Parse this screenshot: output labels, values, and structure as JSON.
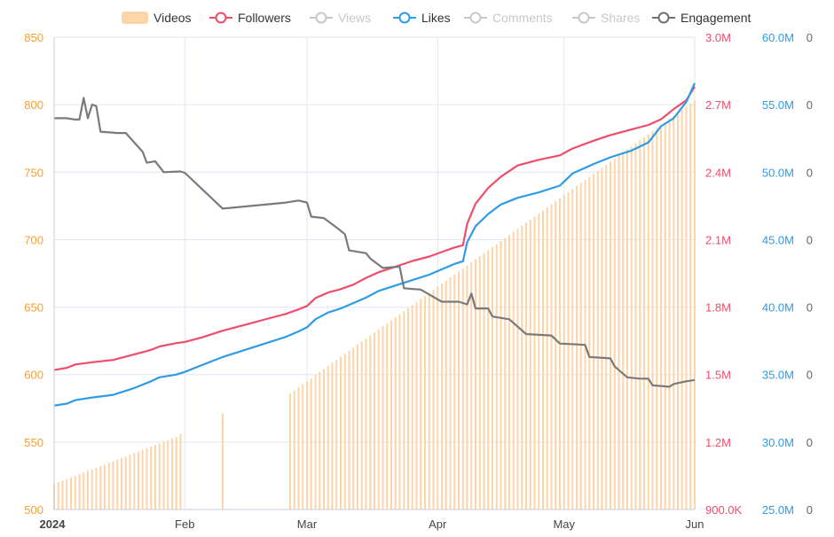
{
  "chart_data": {
    "type": "line",
    "legend_position": "top",
    "grid": true,
    "legend": [
      {
        "name": "Videos",
        "color": "#fcd5a8",
        "marker": "rect",
        "active": true
      },
      {
        "name": "Followers",
        "color": "#ee4d6c",
        "marker": "circle",
        "active": true
      },
      {
        "name": "Views",
        "color": "#c8c8c8",
        "marker": "circle",
        "active": false
      },
      {
        "name": "Likes",
        "color": "#2f9be4",
        "marker": "circle",
        "active": true
      },
      {
        "name": "Comments",
        "color": "#c8c8c8",
        "marker": "circle",
        "active": false
      },
      {
        "name": "Shares",
        "color": "#c8c8c8",
        "marker": "circle",
        "active": false
      },
      {
        "name": "Engagement",
        "color": "#707070",
        "marker": "circle",
        "active": true
      }
    ],
    "x_axis": {
      "type": "date",
      "range": [
        "2024-01-01",
        "2024-06-01"
      ],
      "ticks": [
        {
          "date": "2024-01-01",
          "label": "2024",
          "bold": true
        },
        {
          "date": "2024-02-01",
          "label": "Feb",
          "bold": false
        },
        {
          "date": "2024-03-01",
          "label": "Mar",
          "bold": false
        },
        {
          "date": "2024-04-01",
          "label": "Apr",
          "bold": false
        },
        {
          "date": "2024-05-01",
          "label": "May",
          "bold": false
        },
        {
          "date": "2024-06-01",
          "label": "Jun",
          "bold": false
        }
      ]
    },
    "y_axes": [
      {
        "id": "videos",
        "color": "#f5a030",
        "range": [
          500,
          850
        ],
        "ticks": [
          {
            "v": 500,
            "label": "500"
          },
          {
            "v": 550,
            "label": "550"
          },
          {
            "v": 600,
            "label": "600"
          },
          {
            "v": 650,
            "label": "650"
          },
          {
            "v": 700,
            "label": "700"
          },
          {
            "v": 750,
            "label": "750"
          },
          {
            "v": 800,
            "label": "800"
          },
          {
            "v": 850,
            "label": "850"
          }
        ]
      },
      {
        "id": "followers",
        "color": "#ee4d6c",
        "range": [
          900000,
          3000000
        ],
        "ticks": [
          {
            "v": 900000,
            "label": "900.0K"
          },
          {
            "v": 1200000,
            "label": "1.2M"
          },
          {
            "v": 1500000,
            "label": "1.5M"
          },
          {
            "v": 1800000,
            "label": "1.8M"
          },
          {
            "v": 2100000,
            "label": "2.1M"
          },
          {
            "v": 2400000,
            "label": "2.4M"
          },
          {
            "v": 2700000,
            "label": "2.7M"
          },
          {
            "v": 3000000,
            "label": "3.0M"
          }
        ]
      },
      {
        "id": "likes",
        "color": "#2f9be4",
        "range": [
          25000000,
          60000000
        ],
        "ticks": [
          {
            "v": 25000000,
            "label": "25.0M"
          },
          {
            "v": 30000000,
            "label": "30.0M"
          },
          {
            "v": 35000000,
            "label": "35.0M"
          },
          {
            "v": 40000000,
            "label": "40.0M"
          },
          {
            "v": 45000000,
            "label": "45.0M"
          },
          {
            "v": 50000000,
            "label": "50.0M"
          },
          {
            "v": 55000000,
            "label": "55.0M"
          },
          {
            "v": 60000000,
            "label": "60.0M"
          }
        ]
      },
      {
        "id": "engagement",
        "color": "#666666",
        "range": [
          0,
          7
        ],
        "ticks": [
          {
            "v": 0,
            "label": "0"
          },
          {
            "v": 1,
            "label": "0"
          },
          {
            "v": 2,
            "label": "0"
          },
          {
            "v": 3,
            "label": "0"
          },
          {
            "v": 4,
            "label": "0"
          },
          {
            "v": 5,
            "label": "0"
          },
          {
            "v": 6,
            "label": "0"
          },
          {
            "v": 7,
            "label": "0"
          }
        ]
      }
    ],
    "videos_segments": [
      {
        "start": "2024-01-01",
        "end": "2024-01-31",
        "from": 519,
        "to": 555
      },
      {
        "start": "2024-01-31",
        "end": "2024-01-31",
        "from": 556,
        "to": 556
      },
      {
        "start": "2024-02-10",
        "end": "2024-02-10",
        "from": 571,
        "to": 571
      },
      {
        "start": "2024-02-26",
        "end": "2024-06-01",
        "from": 586,
        "to": 803
      }
    ],
    "series": [
      {
        "name": "Followers",
        "axis": "followers",
        "color": "#ee4d6c",
        "points": [
          [
            "2024-01-01",
            1520000
          ],
          [
            "2024-01-04",
            1530000
          ],
          [
            "2024-01-06",
            1545000
          ],
          [
            "2024-01-10",
            1555000
          ],
          [
            "2024-01-15",
            1565000
          ],
          [
            "2024-01-20",
            1590000
          ],
          [
            "2024-01-24",
            1610000
          ],
          [
            "2024-01-26",
            1625000
          ],
          [
            "2024-01-30",
            1640000
          ],
          [
            "2024-02-01",
            1645000
          ],
          [
            "2024-02-05",
            1665000
          ],
          [
            "2024-02-10",
            1695000
          ],
          [
            "2024-02-15",
            1720000
          ],
          [
            "2024-02-20",
            1745000
          ],
          [
            "2024-02-25",
            1770000
          ],
          [
            "2024-02-28",
            1790000
          ],
          [
            "2024-03-01",
            1805000
          ],
          [
            "2024-03-03",
            1840000
          ],
          [
            "2024-03-06",
            1865000
          ],
          [
            "2024-03-09",
            1880000
          ],
          [
            "2024-03-12",
            1900000
          ],
          [
            "2024-03-15",
            1930000
          ],
          [
            "2024-03-18",
            1955000
          ],
          [
            "2024-03-22",
            1980000
          ],
          [
            "2024-03-26",
            2005000
          ],
          [
            "2024-03-30",
            2025000
          ],
          [
            "2024-04-02",
            2045000
          ],
          [
            "2024-04-05",
            2065000
          ],
          [
            "2024-04-07",
            2075000
          ],
          [
            "2024-04-08",
            2170000
          ],
          [
            "2024-04-10",
            2260000
          ],
          [
            "2024-04-13",
            2330000
          ],
          [
            "2024-04-16",
            2380000
          ],
          [
            "2024-04-20",
            2430000
          ],
          [
            "2024-04-25",
            2455000
          ],
          [
            "2024-04-30",
            2475000
          ],
          [
            "2024-05-03",
            2505000
          ],
          [
            "2024-05-08",
            2540000
          ],
          [
            "2024-05-12",
            2565000
          ],
          [
            "2024-05-17",
            2590000
          ],
          [
            "2024-05-21",
            2610000
          ],
          [
            "2024-05-24",
            2635000
          ],
          [
            "2024-05-27",
            2680000
          ],
          [
            "2024-05-30",
            2720000
          ],
          [
            "2024-06-01",
            2780000
          ]
        ]
      },
      {
        "name": "Likes",
        "axis": "likes",
        "color": "#2f9be4",
        "points": [
          [
            "2024-01-01",
            32700000
          ],
          [
            "2024-01-04",
            32850000
          ],
          [
            "2024-01-06",
            33100000
          ],
          [
            "2024-01-10",
            33300000
          ],
          [
            "2024-01-15",
            33500000
          ],
          [
            "2024-01-20",
            34000000
          ],
          [
            "2024-01-24",
            34500000
          ],
          [
            "2024-01-26",
            34800000
          ],
          [
            "2024-01-30",
            35000000
          ],
          [
            "2024-02-01",
            35200000
          ],
          [
            "2024-02-05",
            35700000
          ],
          [
            "2024-02-10",
            36300000
          ],
          [
            "2024-02-15",
            36800000
          ],
          [
            "2024-02-20",
            37300000
          ],
          [
            "2024-02-25",
            37800000
          ],
          [
            "2024-02-28",
            38200000
          ],
          [
            "2024-03-01",
            38500000
          ],
          [
            "2024-03-03",
            39100000
          ],
          [
            "2024-03-06",
            39600000
          ],
          [
            "2024-03-09",
            39900000
          ],
          [
            "2024-03-12",
            40300000
          ],
          [
            "2024-03-15",
            40700000
          ],
          [
            "2024-03-18",
            41200000
          ],
          [
            "2024-03-22",
            41600000
          ],
          [
            "2024-03-26",
            42000000
          ],
          [
            "2024-03-30",
            42400000
          ],
          [
            "2024-04-02",
            42800000
          ],
          [
            "2024-04-05",
            43200000
          ],
          [
            "2024-04-07",
            43400000
          ],
          [
            "2024-04-08",
            44800000
          ],
          [
            "2024-04-10",
            46000000
          ],
          [
            "2024-04-13",
            46900000
          ],
          [
            "2024-04-16",
            47600000
          ],
          [
            "2024-04-20",
            48100000
          ],
          [
            "2024-04-25",
            48500000
          ],
          [
            "2024-04-30",
            49000000
          ],
          [
            "2024-05-03",
            49900000
          ],
          [
            "2024-05-08",
            50600000
          ],
          [
            "2024-05-12",
            51100000
          ],
          [
            "2024-05-17",
            51600000
          ],
          [
            "2024-05-21",
            52200000
          ],
          [
            "2024-05-24",
            53400000
          ],
          [
            "2024-05-27",
            54000000
          ],
          [
            "2024-05-30",
            55200000
          ],
          [
            "2024-06-01",
            56600000
          ]
        ]
      },
      {
        "name": "Engagement",
        "axis": "engagement",
        "color": "#7a7a7a",
        "points": [
          [
            "2024-01-01",
            5.8
          ],
          [
            "2024-01-04",
            5.8
          ],
          [
            "2024-01-06",
            5.78
          ],
          [
            "2024-01-07",
            5.78
          ],
          [
            "2024-01-08",
            6.1
          ],
          [
            "2024-01-09",
            5.8
          ],
          [
            "2024-01-10",
            6.0
          ],
          [
            "2024-01-11",
            5.98
          ],
          [
            "2024-01-12",
            5.6
          ],
          [
            "2024-01-16",
            5.58
          ],
          [
            "2024-01-18",
            5.58
          ],
          [
            "2024-01-22",
            5.3
          ],
          [
            "2024-01-23",
            5.14
          ],
          [
            "2024-01-25",
            5.16
          ],
          [
            "2024-01-27",
            5.0
          ],
          [
            "2024-01-31",
            5.01
          ],
          [
            "2024-02-01",
            4.99
          ],
          [
            "2024-02-10",
            4.46
          ],
          [
            "2024-02-25",
            4.55
          ],
          [
            "2024-02-28",
            4.58
          ],
          [
            "2024-03-01",
            4.55
          ],
          [
            "2024-03-02",
            4.34
          ],
          [
            "2024-03-05",
            4.32
          ],
          [
            "2024-03-08",
            4.18
          ],
          [
            "2024-03-10",
            4.08
          ],
          [
            "2024-03-11",
            3.84
          ],
          [
            "2024-03-15",
            3.8
          ],
          [
            "2024-03-16",
            3.72
          ],
          [
            "2024-03-19",
            3.58
          ],
          [
            "2024-03-23",
            3.6
          ],
          [
            "2024-03-24",
            3.28
          ],
          [
            "2024-03-28",
            3.26
          ],
          [
            "2024-04-02",
            3.08
          ],
          [
            "2024-04-06",
            3.08
          ],
          [
            "2024-04-08",
            3.04
          ],
          [
            "2024-04-09",
            3.2
          ],
          [
            "2024-04-10",
            2.98
          ],
          [
            "2024-04-13",
            2.98
          ],
          [
            "2024-04-14",
            2.86
          ],
          [
            "2024-04-18",
            2.82
          ],
          [
            "2024-04-22",
            2.6
          ],
          [
            "2024-04-28",
            2.58
          ],
          [
            "2024-04-30",
            2.46
          ],
          [
            "2024-05-06",
            2.44
          ],
          [
            "2024-05-07",
            2.26
          ],
          [
            "2024-05-12",
            2.24
          ],
          [
            "2024-05-13",
            2.12
          ],
          [
            "2024-05-16",
            1.96
          ],
          [
            "2024-05-19",
            1.94
          ],
          [
            "2024-05-21",
            1.94
          ],
          [
            "2024-05-22",
            1.84
          ],
          [
            "2024-05-26",
            1.82
          ],
          [
            "2024-05-27",
            1.86
          ],
          [
            "2024-05-30",
            1.9
          ],
          [
            "2024-06-01",
            1.92
          ]
        ]
      }
    ]
  }
}
